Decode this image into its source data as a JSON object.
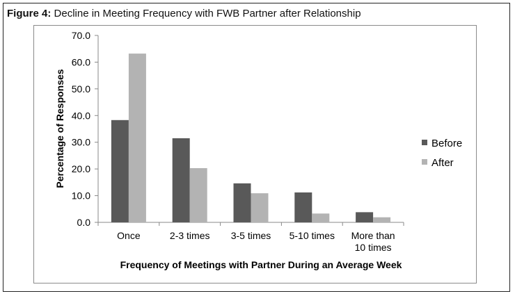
{
  "figure": {
    "label": "Figure 4:",
    "caption": "Decline in Meeting Frequency with FWB Partner after Relationship"
  },
  "chart_data": {
    "type": "bar",
    "categories": [
      [
        "Once"
      ],
      [
        "2-3 times"
      ],
      [
        "3-5 times"
      ],
      [
        "5-10 times"
      ],
      [
        "More than",
        "10 times"
      ]
    ],
    "series": [
      {
        "name": "Before",
        "values": [
          38.3,
          31.5,
          14.6,
          11.2,
          3.8
        ],
        "color": "#595959"
      },
      {
        "name": "After",
        "values": [
          63.2,
          20.3,
          10.9,
          3.3,
          1.9
        ],
        "color": "#b3b3b3"
      }
    ],
    "xlabel": "Frequency of Meetings with Partner During an Average Week",
    "ylabel": "Percentage of Responses",
    "ylim": [
      0,
      70
    ],
    "yticks": [
      "0.0",
      "10.0",
      "20.0",
      "30.0",
      "40.0",
      "50.0",
      "60.0",
      "70.0"
    ],
    "grid": false,
    "legend_position": "right"
  },
  "colors": {
    "axis": "#888888",
    "text": "#000000",
    "frame": "#222222"
  }
}
